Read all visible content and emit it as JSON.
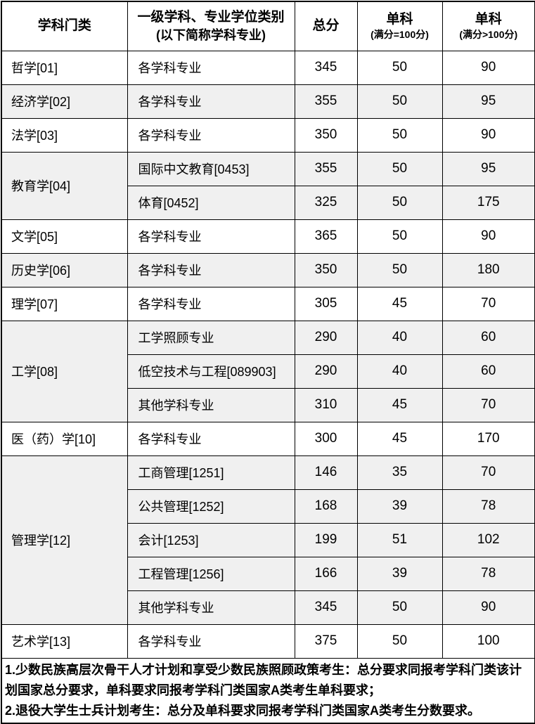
{
  "table": {
    "headers": {
      "col1": "学科门类",
      "col2_line1": "一级学科、专业学位类别",
      "col2_line2": "(以下简称学科专业)",
      "col3": "总分",
      "col4_line1": "单科",
      "col4_line2": "(满分=100分)",
      "col5_line1": "单科",
      "col5_line2": "(满分>100分)"
    },
    "groups": [
      {
        "category": "哲学[01]",
        "shaded": false,
        "rows": [
          {
            "major": "各学科专业",
            "total": "345",
            "single100": "50",
            "singleOver100": "90"
          }
        ]
      },
      {
        "category": "经济学[02]",
        "shaded": true,
        "rows": [
          {
            "major": "各学科专业",
            "total": "355",
            "single100": "50",
            "singleOver100": "95"
          }
        ]
      },
      {
        "category": "法学[03]",
        "shaded": false,
        "rows": [
          {
            "major": "各学科专业",
            "total": "350",
            "single100": "50",
            "singleOver100": "90"
          }
        ]
      },
      {
        "category": "教育学[04]",
        "shaded": true,
        "rows": [
          {
            "major": "国际中文教育[0453]",
            "total": "355",
            "single100": "50",
            "singleOver100": "95"
          },
          {
            "major": "体育[0452]",
            "total": "325",
            "single100": "50",
            "singleOver100": "175"
          }
        ]
      },
      {
        "category": "文学[05]",
        "shaded": false,
        "rows": [
          {
            "major": "各学科专业",
            "total": "365",
            "single100": "50",
            "singleOver100": "90"
          }
        ]
      },
      {
        "category": "历史学[06]",
        "shaded": true,
        "rows": [
          {
            "major": "各学科专业",
            "total": "350",
            "single100": "50",
            "singleOver100": "180"
          }
        ]
      },
      {
        "category": "理学[07]",
        "shaded": false,
        "rows": [
          {
            "major": "各学科专业",
            "total": "305",
            "single100": "45",
            "singleOver100": "70"
          }
        ]
      },
      {
        "category": "工学[08]",
        "shaded": true,
        "rows": [
          {
            "major": "工学照顾专业",
            "total": "290",
            "single100": "40",
            "singleOver100": "60"
          },
          {
            "major": "低空技术与工程[089903]",
            "total": "290",
            "single100": "40",
            "singleOver100": "60"
          },
          {
            "major": "其他学科专业",
            "total": "310",
            "single100": "45",
            "singleOver100": "70"
          }
        ]
      },
      {
        "category": "医（药）学[10]",
        "shaded": false,
        "rows": [
          {
            "major": "各学科专业",
            "total": "300",
            "single100": "45",
            "singleOver100": "170"
          }
        ]
      },
      {
        "category": "管理学[12]",
        "shaded": true,
        "rows": [
          {
            "major": "工商管理[1251]",
            "total": "146",
            "single100": "35",
            "singleOver100": "70"
          },
          {
            "major": "公共管理[1252]",
            "total": "168",
            "single100": "39",
            "singleOver100": "78"
          },
          {
            "major": "会计[1253]",
            "total": "199",
            "single100": "51",
            "singleOver100": "102"
          },
          {
            "major": "工程管理[1256]",
            "total": "166",
            "single100": "39",
            "singleOver100": "78"
          },
          {
            "major": "其他学科专业",
            "total": "345",
            "single100": "50",
            "singleOver100": "90"
          }
        ]
      },
      {
        "category": "艺术学[13]",
        "shaded": false,
        "rows": [
          {
            "major": "各学科专业",
            "total": "375",
            "single100": "50",
            "singleOver100": "100"
          }
        ]
      }
    ],
    "notes": [
      "1.少数民族高层次骨干人才计划和享受少数民族照顾政策考生：总分要求同报考学科门类该计划国家总分要求，单科要求同报考学科门类国家A类考生单科要求；",
      "2.退役大学生士兵计划考生：总分及单科要求同报考学科门类国家A类考生分数要求。"
    ],
    "colors": {
      "shaded_row": "#f0f0f0",
      "border": "#000000",
      "text": "#000000"
    }
  }
}
